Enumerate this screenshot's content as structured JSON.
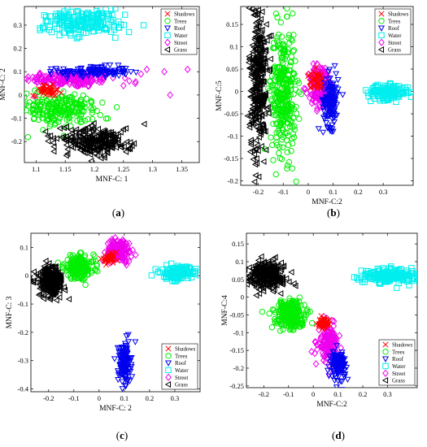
{
  "figure": {
    "legend_labels": [
      "Shadows",
      "Trees",
      "Roof",
      "Water",
      "Street",
      "Grass"
    ],
    "legend_colors": [
      "#ff0000",
      "#00ee00",
      "#0000ee",
      "#00eeee",
      "#ee00ee",
      "#000000"
    ],
    "marker_types": [
      "x",
      "circle",
      "triangle-down",
      "square",
      "diamond",
      "triangle-left"
    ]
  },
  "chart_data": [
    {
      "type": "scatter",
      "panel_label": "(a)",
      "xlabel": "MNF-C: 1",
      "ylabel": "MNF-C: 2",
      "xlim": [
        1.08,
        1.38
      ],
      "ylim": [
        -0.29,
        0.38
      ],
      "xticks": [
        1.1,
        1.15,
        1.2,
        1.25,
        1.3,
        1.35
      ],
      "yticks": [
        -0.2,
        -0.1,
        0,
        0.1,
        0.2,
        0.3
      ],
      "legend_position": "top-right",
      "series": [
        {
          "name": "Shadows",
          "clusters": [
            {
              "cx": 1.12,
              "cy": 0.02,
              "sx": 0.012,
              "sy": 0.012,
              "n": 40
            }
          ]
        },
        {
          "name": "Trees",
          "clusters": [
            {
              "cx": 1.14,
              "cy": -0.06,
              "sx": 0.03,
              "sy": 0.035,
              "n": 220,
              "angle": -0.35
            }
          ]
        },
        {
          "name": "Roof",
          "clusters": [
            {
              "cx": 1.2,
              "cy": 0.1,
              "sx": 0.03,
              "sy": 0.012,
              "n": 120
            }
          ]
        },
        {
          "name": "Water",
          "clusters": [
            {
              "cx": 1.18,
              "cy": 0.31,
              "sx": 0.035,
              "sy": 0.025,
              "n": 200,
              "angle": 0.25
            }
          ]
        },
        {
          "name": "Street",
          "clusters": [
            {
              "cx": 1.16,
              "cy": 0.07,
              "sx": 0.04,
              "sy": 0.018,
              "n": 180
            }
          ],
          "points": [
            [
              1.26,
              0.06
            ],
            [
              1.28,
              0.09
            ],
            [
              1.29,
              0.11
            ],
            [
              1.32,
              0.1
            ],
            [
              1.33,
              0.0
            ],
            [
              1.36,
              0.11
            ],
            [
              1.25,
              0.04
            ],
            [
              1.27,
              0.05
            ]
          ]
        },
        {
          "name": "Grass",
          "clusters": [
            {
              "cx": 1.2,
              "cy": -0.2,
              "sx": 0.03,
              "sy": 0.03,
              "n": 240,
              "angle": -0.4
            }
          ]
        }
      ]
    },
    {
      "type": "scatter",
      "panel_label": "(b)",
      "xlabel": "MNF-C:2",
      "ylabel": "MNF-C:5",
      "xlim": [
        -0.27,
        0.42
      ],
      "ylim": [
        -0.21,
        0.19
      ],
      "xticks": [
        -0.2,
        -0.1,
        0,
        0.1,
        0.2,
        0.3
      ],
      "yticks": [
        -0.2,
        -0.15,
        -0.1,
        -0.05,
        0,
        0.05,
        0.1,
        0.15
      ],
      "legend_position": "top-right",
      "series": [
        {
          "name": "Shadows",
          "clusters": [
            {
              "cx": 0.03,
              "cy": 0.025,
              "sx": 0.015,
              "sy": 0.01,
              "n": 40
            }
          ]
        },
        {
          "name": "Trees",
          "clusters": [
            {
              "cx": -0.1,
              "cy": 0.0,
              "sx": 0.025,
              "sy": 0.07,
              "n": 320
            }
          ]
        },
        {
          "name": "Roof",
          "clusters": [
            {
              "cx": 0.09,
              "cy": -0.02,
              "sx": 0.015,
              "sy": 0.03,
              "n": 140
            }
          ]
        },
        {
          "name": "Water",
          "clusters": [
            {
              "cx": 0.32,
              "cy": -0.002,
              "sx": 0.04,
              "sy": 0.008,
              "n": 160
            }
          ]
        },
        {
          "name": "Street",
          "clusters": [
            {
              "cx": 0.05,
              "cy": 0.01,
              "sx": 0.025,
              "sy": 0.025,
              "n": 150
            }
          ]
        },
        {
          "name": "Grass",
          "clusters": [
            {
              "cx": -0.2,
              "cy": 0.02,
              "sx": 0.018,
              "sy": 0.09,
              "n": 320
            }
          ]
        }
      ]
    },
    {
      "type": "scatter",
      "panel_label": "(c)",
      "xlabel": "MNF-C: 2",
      "ylabel": "MNF-C: 3",
      "xlim": [
        -0.27,
        0.4
      ],
      "ylim": [
        -0.41,
        0.15
      ],
      "xticks": [
        -0.2,
        -0.1,
        0,
        0.1,
        0.2,
        0.3
      ],
      "yticks": [
        -0.4,
        -0.3,
        -0.2,
        -0.1,
        0,
        0.1
      ],
      "legend_position": "bottom-right",
      "series": [
        {
          "name": "Shadows",
          "clusters": [
            {
              "cx": 0.04,
              "cy": 0.06,
              "sx": 0.015,
              "sy": 0.008,
              "n": 40
            }
          ]
        },
        {
          "name": "Trees",
          "clusters": [
            {
              "cx": -0.08,
              "cy": 0.03,
              "sx": 0.03,
              "sy": 0.02,
              "n": 220
            }
          ]
        },
        {
          "name": "Roof",
          "clusters": [
            {
              "cx": 0.1,
              "cy": -0.31,
              "sx": 0.012,
              "sy": 0.035,
              "n": 150
            }
          ]
        },
        {
          "name": "Water",
          "clusters": [
            {
              "cx": 0.31,
              "cy": 0.01,
              "sx": 0.03,
              "sy": 0.012,
              "n": 150,
              "angle": -0.3
            }
          ]
        },
        {
          "name": "Street",
          "clusters": [
            {
              "cx": 0.08,
              "cy": 0.09,
              "sx": 0.025,
              "sy": 0.02,
              "n": 160
            }
          ]
        },
        {
          "name": "Grass",
          "clusters": [
            {
              "cx": -0.19,
              "cy": -0.02,
              "sx": 0.025,
              "sy": 0.025,
              "n": 260,
              "angle": 0.4
            }
          ]
        }
      ]
    },
    {
      "type": "scatter",
      "panel_label": "(d)",
      "xlabel": "MNF-C:2",
      "ylabel": "MNF-C:4",
      "xlim": [
        -0.27,
        0.42
      ],
      "ylim": [
        -0.255,
        0.18
      ],
      "xticks": [
        -0.2,
        -0.1,
        0,
        0.1,
        0.2,
        0.3
      ],
      "yticks": [
        -0.25,
        -0.2,
        -0.15,
        -0.1,
        -0.05,
        0,
        0.05,
        0.1,
        0.15
      ],
      "legend_position": "bottom-right",
      "series": [
        {
          "name": "Shadows",
          "clusters": [
            {
              "cx": 0.04,
              "cy": -0.075,
              "sx": 0.012,
              "sy": 0.008,
              "n": 40
            }
          ]
        },
        {
          "name": "Trees",
          "clusters": [
            {
              "cx": -0.09,
              "cy": -0.05,
              "sx": 0.03,
              "sy": 0.02,
              "n": 260,
              "angle": -0.5
            }
          ]
        },
        {
          "name": "Roof",
          "clusters": [
            {
              "cx": 0.1,
              "cy": -0.19,
              "sx": 0.015,
              "sy": 0.02,
              "n": 120
            }
          ]
        },
        {
          "name": "Water",
          "clusters": [
            {
              "cx": 0.31,
              "cy": 0.06,
              "sx": 0.06,
              "sy": 0.01,
              "n": 200,
              "angle": 0.9
            }
          ]
        },
        {
          "name": "Street",
          "clusters": [
            {
              "cx": 0.06,
              "cy": -0.13,
              "sx": 0.02,
              "sy": 0.025,
              "n": 150
            }
          ]
        },
        {
          "name": "Grass",
          "clusters": [
            {
              "cx": -0.19,
              "cy": 0.06,
              "sx": 0.04,
              "sy": 0.02,
              "n": 260,
              "angle": -0.55
            }
          ]
        }
      ]
    }
  ]
}
